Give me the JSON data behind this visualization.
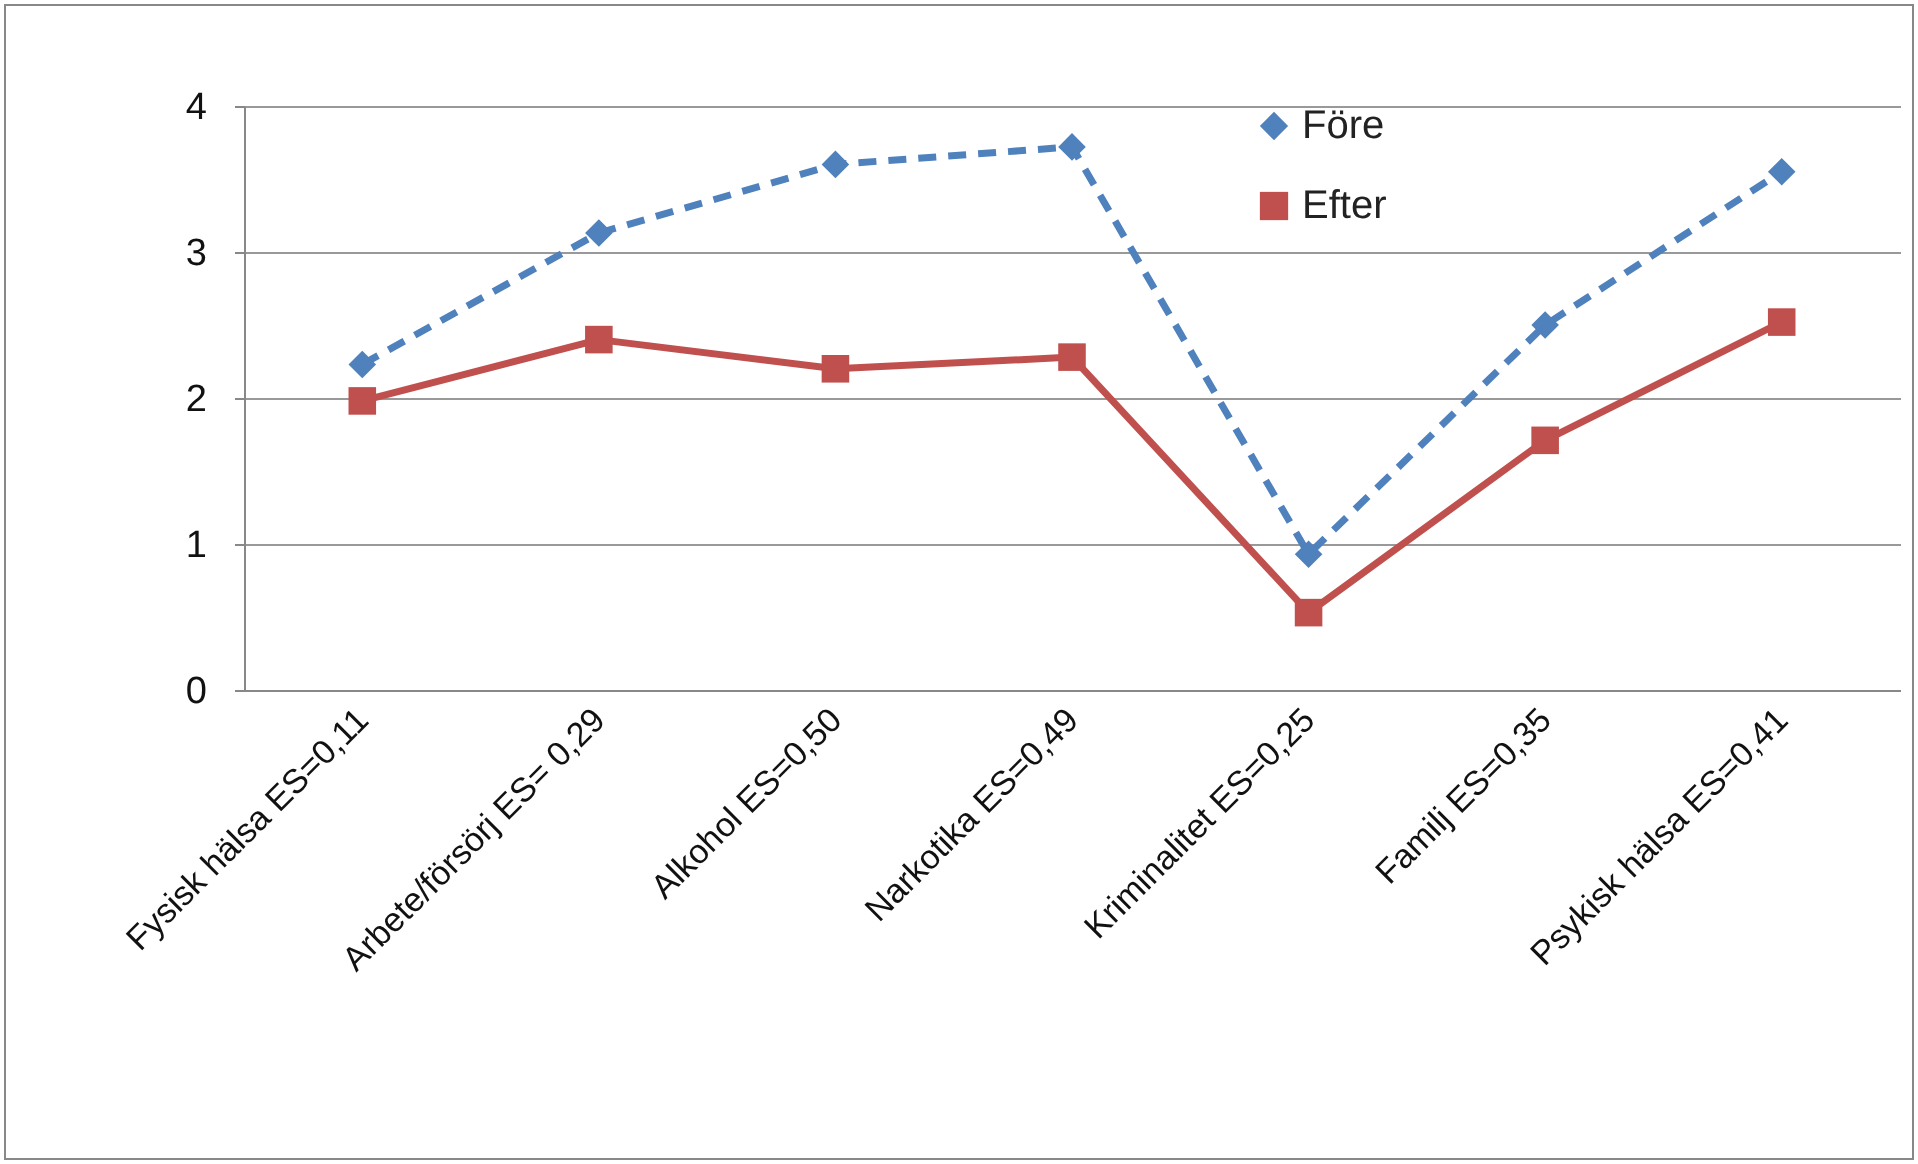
{
  "chart_data": {
    "type": "line",
    "categories": [
      "Fysisk hälsa ES=0,11",
      "Arbete/försörj ES= 0,29",
      "Alkohol ES=0,50",
      "Narkotika ES=0,49",
      "Kriminalitet ES=0,25",
      "Familj ES=0,35",
      "Psykisk hälsa ES=0,41"
    ],
    "series": [
      {
        "name": "Före",
        "color": "#4f81bd",
        "marker": "diamond",
        "line_style": "dashed",
        "values": [
          2.23,
          3.13,
          3.6,
          3.72,
          0.93,
          2.5,
          3.55
        ]
      },
      {
        "name": "Efter",
        "color": "#c0504d",
        "marker": "square",
        "line_style": "solid",
        "values": [
          1.98,
          2.4,
          2.2,
          2.28,
          0.53,
          1.71,
          2.52
        ]
      }
    ],
    "ylim": [
      0,
      4
    ],
    "yticks": [
      0,
      1,
      2,
      3,
      4
    ],
    "grid": "y",
    "legend": "top right"
  }
}
